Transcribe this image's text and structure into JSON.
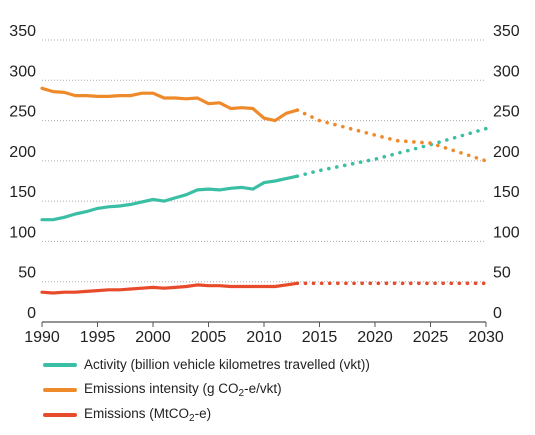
{
  "chart_data": {
    "type": "line",
    "xlim": [
      1990,
      2030
    ],
    "ylim": [
      0,
      350
    ],
    "x_ticks": [
      "1990",
      "1995",
      "2000",
      "2005",
      "2010",
      "2015",
      "2020",
      "2025",
      "2030"
    ],
    "y_ticks": [
      "0",
      "50",
      "100",
      "150",
      "200",
      "250",
      "300",
      "350"
    ],
    "grid": "horizontal-dotted",
    "legend_position": "bottom",
    "series": [
      {
        "name": "Activity (billion vehicle kilometres travelled (vkt))",
        "color": "#3bbfa4",
        "x": [
          1990,
          1991,
          1992,
          1993,
          1994,
          1995,
          1996,
          1997,
          1998,
          1999,
          2000,
          2001,
          2002,
          2003,
          2004,
          2005,
          2006,
          2007,
          2008,
          2009,
          2010,
          2011,
          2012,
          2013
        ],
        "values": [
          127,
          127,
          130,
          134,
          137,
          141,
          143,
          144,
          146,
          149,
          152,
          150,
          154,
          158,
          164,
          165,
          164,
          166,
          167,
          165,
          173,
          175,
          178,
          181
        ],
        "projection": {
          "x": [
            2013,
            2015,
            2020,
            2025,
            2030
          ],
          "values": [
            181,
            188,
            202,
            220,
            240
          ]
        }
      },
      {
        "name": "Emissions intensity (g CO2-e/vkt)",
        "name_parts": {
          "before": "Emissions intensity (g CO",
          "sub": "2",
          "after": "-e/vkt)"
        },
        "color": "#ef8a2b",
        "x": [
          1990,
          1991,
          1992,
          1993,
          1994,
          1995,
          1996,
          1997,
          1998,
          1999,
          2000,
          2001,
          2002,
          2003,
          2004,
          2005,
          2006,
          2007,
          2008,
          2009,
          2010,
          2011,
          2012,
          2013
        ],
        "values": [
          290,
          286,
          285,
          281,
          281,
          280,
          280,
          281,
          281,
          284,
          284,
          278,
          278,
          277,
          278,
          271,
          272,
          265,
          266,
          265,
          253,
          250,
          259,
          263
        ],
        "projection": {
          "x": [
            2013,
            2015,
            2020,
            2022,
            2025,
            2030
          ],
          "values": [
            263,
            250,
            232,
            225,
            222,
            200
          ]
        }
      },
      {
        "name": "Emissions (MtCO2-e)",
        "name_parts": {
          "before": "Emissions (MtCO",
          "sub": "2",
          "after": "-e)"
        },
        "color": "#e84b2b",
        "x": [
          1990,
          1991,
          1992,
          1993,
          1994,
          1995,
          1996,
          1997,
          1998,
          1999,
          2000,
          2001,
          2002,
          2003,
          2004,
          2005,
          2006,
          2007,
          2008,
          2009,
          2010,
          2011,
          2012,
          2013
        ],
        "values": [
          37,
          36,
          37,
          37,
          38,
          39,
          40,
          40,
          41,
          42,
          43,
          42,
          43,
          44,
          46,
          45,
          45,
          44,
          44,
          44,
          44,
          44,
          46,
          48
        ],
        "projection": {
          "x": [
            2013,
            2020,
            2025,
            2030
          ],
          "values": [
            48,
            48,
            48,
            48
          ]
        }
      }
    ]
  }
}
